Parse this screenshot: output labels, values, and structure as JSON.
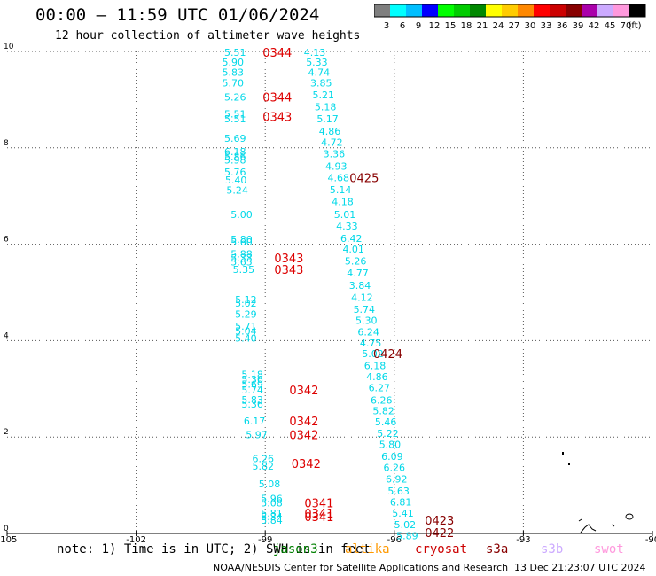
{
  "header": {
    "title": "00:00 – 11:59 UTC 01/06/2024",
    "subtitle": "12 hour collection of altimeter wave heights"
  },
  "colorbar": {
    "ticks": [
      "3",
      "6",
      "9",
      "12",
      "15",
      "18",
      "21",
      "24",
      "27",
      "30",
      "33",
      "36",
      "39",
      "42",
      "45",
      "70",
      "(ft)"
    ],
    "colors": [
      "#7f7f7f",
      "#00ffff",
      "#00bfff",
      "#0000ff",
      "#00ff00",
      "#00cc00",
      "#008800",
      "#ffff00",
      "#ffcc00",
      "#ff8800",
      "#ff0000",
      "#cc0000",
      "#880000",
      "#aa00aa",
      "#ccaaff",
      "#ff99dd",
      "#000000"
    ]
  },
  "footer": {
    "note": "note: 1) Time is in UTC; 2) SWH is in feet",
    "satellites": [
      {
        "name": "jason3",
        "color": "#008000"
      },
      {
        "name": "altika",
        "color": "#ff9900"
      },
      {
        "name": "cryosat",
        "color": "#cc0000"
      },
      {
        "name": "s3a",
        "color": "#880000"
      },
      {
        "name": "s3b",
        "color": "#ccaaff"
      },
      {
        "name": "swot",
        "color": "#ff99dd"
      }
    ],
    "credit": "NOAA/NESDIS Center for Satellite Applications and Research",
    "timestamp": "13 Dec 21:23:07 UTC 2024"
  },
  "chart_data": {
    "type": "scatter",
    "xlim": [
      -105,
      -90
    ],
    "ylim": [
      0,
      10
    ],
    "xticks": [
      "-105",
      "-102",
      "-99",
      "-96",
      "-93",
      "-90"
    ],
    "yticks": [
      "0",
      "2",
      "4",
      "6",
      "8",
      "10"
    ],
    "grid": true,
    "swh_color": "#00d8e8",
    "track1": [
      {
        "lon": -99.7,
        "lat": 9.98,
        "v": "5.51"
      },
      {
        "lon": -99.75,
        "lat": 9.78,
        "v": "5.90"
      },
      {
        "lon": -99.75,
        "lat": 9.57,
        "v": "5.83"
      },
      {
        "lon": -99.75,
        "lat": 9.35,
        "v": "5.70"
      },
      {
        "lon": -99.7,
        "lat": 9.05,
        "v": "5.26"
      },
      {
        "lon": -99.7,
        "lat": 8.7,
        "v": "5.51"
      },
      {
        "lon": -99.7,
        "lat": 8.6,
        "v": "5.51"
      },
      {
        "lon": -99.7,
        "lat": 8.2,
        "v": "5.69"
      },
      {
        "lon": -99.7,
        "lat": 7.92,
        "v": "6.18"
      },
      {
        "lon": -99.7,
        "lat": 7.82,
        "v": "5.86"
      },
      {
        "lon": -99.7,
        "lat": 7.75,
        "v": "5.98"
      },
      {
        "lon": -99.7,
        "lat": 7.5,
        "v": "5.76"
      },
      {
        "lon": -99.68,
        "lat": 7.33,
        "v": "5.40"
      },
      {
        "lon": -99.65,
        "lat": 7.12,
        "v": "5.24"
      },
      {
        "lon": -99.55,
        "lat": 6.62,
        "v": "5.00"
      },
      {
        "lon": -99.55,
        "lat": 6.1,
        "v": "5.80"
      },
      {
        "lon": -99.55,
        "lat": 6.05,
        "v": "5.60"
      },
      {
        "lon": -99.55,
        "lat": 5.8,
        "v": "5.88"
      },
      {
        "lon": -99.55,
        "lat": 5.72,
        "v": "5.33"
      },
      {
        "lon": -99.55,
        "lat": 5.63,
        "v": "5.65"
      },
      {
        "lon": -99.5,
        "lat": 5.48,
        "v": "5.35"
      },
      {
        "lon": -99.45,
        "lat": 4.85,
        "v": "5.12"
      },
      {
        "lon": -99.45,
        "lat": 4.78,
        "v": "5.02"
      },
      {
        "lon": -99.45,
        "lat": 4.55,
        "v": "5.29"
      },
      {
        "lon": -99.45,
        "lat": 4.3,
        "v": "5.71"
      },
      {
        "lon": -99.45,
        "lat": 4.2,
        "v": "5.04"
      },
      {
        "lon": -99.45,
        "lat": 4.05,
        "v": "5.40"
      },
      {
        "lon": -99.3,
        "lat": 3.3,
        "v": "5.18"
      },
      {
        "lon": -99.3,
        "lat": 3.2,
        "v": "5.36"
      },
      {
        "lon": -99.3,
        "lat": 3.1,
        "v": "5.69"
      },
      {
        "lon": -99.3,
        "lat": 2.98,
        "v": "5.74"
      },
      {
        "lon": -99.3,
        "lat": 2.78,
        "v": "5.83"
      },
      {
        "lon": -99.3,
        "lat": 2.68,
        "v": "5.36"
      },
      {
        "lon": -99.25,
        "lat": 2.33,
        "v": "6.17"
      },
      {
        "lon": -99.2,
        "lat": 2.05,
        "v": "5.97"
      },
      {
        "lon": -99.05,
        "lat": 1.55,
        "v": "6.26"
      },
      {
        "lon": -99.05,
        "lat": 1.4,
        "v": "5.82"
      },
      {
        "lon": -98.9,
        "lat": 1.03,
        "v": "5.08"
      },
      {
        "lon": -98.85,
        "lat": 0.73,
        "v": "5.96"
      },
      {
        "lon": -98.85,
        "lat": 0.63,
        "v": "5.08"
      },
      {
        "lon": -98.85,
        "lat": 0.42,
        "v": "5.81"
      },
      {
        "lon": -98.85,
        "lat": 0.35,
        "v": "5.34"
      },
      {
        "lon": -98.85,
        "lat": 0.28,
        "v": "5.84"
      }
    ],
    "track2": [
      {
        "lon": -97.85,
        "lat": 9.98,
        "v": "4.13"
      },
      {
        "lon": -97.8,
        "lat": 9.78,
        "v": "5.33"
      },
      {
        "lon": -97.75,
        "lat": 9.57,
        "v": "4.74"
      },
      {
        "lon": -97.7,
        "lat": 9.35,
        "v": "3.85"
      },
      {
        "lon": -97.65,
        "lat": 9.1,
        "v": "5.21"
      },
      {
        "lon": -97.6,
        "lat": 8.85,
        "v": "5.18"
      },
      {
        "lon": -97.55,
        "lat": 8.6,
        "v": "5.17"
      },
      {
        "lon": -97.5,
        "lat": 8.35,
        "v": "4.86"
      },
      {
        "lon": -97.45,
        "lat": 8.12,
        "v": "4.72"
      },
      {
        "lon": -97.4,
        "lat": 7.88,
        "v": "3.36"
      },
      {
        "lon": -97.35,
        "lat": 7.62,
        "v": "4.93"
      },
      {
        "lon": -97.3,
        "lat": 7.38,
        "v": "4.68"
      },
      {
        "lon": -97.25,
        "lat": 7.13,
        "v": "5.14"
      },
      {
        "lon": -97.2,
        "lat": 6.88,
        "v": "4.18"
      },
      {
        "lon": -97.15,
        "lat": 6.62,
        "v": "5.01"
      },
      {
        "lon": -97.1,
        "lat": 6.38,
        "v": "4.33"
      },
      {
        "lon": -97.0,
        "lat": 6.12,
        "v": "6.42"
      },
      {
        "lon": -96.95,
        "lat": 5.9,
        "v": "4.01"
      },
      {
        "lon": -96.9,
        "lat": 5.65,
        "v": "5.26"
      },
      {
        "lon": -96.85,
        "lat": 5.4,
        "v": "4.77"
      },
      {
        "lon": -96.8,
        "lat": 5.15,
        "v": "3.84"
      },
      {
        "lon": -96.75,
        "lat": 4.9,
        "v": "4.12"
      },
      {
        "lon": -96.7,
        "lat": 4.65,
        "v": "5.74"
      },
      {
        "lon": -96.65,
        "lat": 4.42,
        "v": "5.30"
      },
      {
        "lon": -96.6,
        "lat": 4.18,
        "v": "6.24"
      },
      {
        "lon": -96.55,
        "lat": 3.95,
        "v": "4.75"
      },
      {
        "lon": -96.5,
        "lat": 3.73,
        "v": "5.02"
      },
      {
        "lon": -96.45,
        "lat": 3.48,
        "v": "6.18"
      },
      {
        "lon": -96.4,
        "lat": 3.25,
        "v": "4.86"
      },
      {
        "lon": -96.35,
        "lat": 3.02,
        "v": "6.27"
      },
      {
        "lon": -96.3,
        "lat": 2.77,
        "v": "6.26"
      },
      {
        "lon": -96.25,
        "lat": 2.55,
        "v": "5.82"
      },
      {
        "lon": -96.2,
        "lat": 2.32,
        "v": "5.46"
      },
      {
        "lon": -96.15,
        "lat": 2.08,
        "v": "5.22"
      },
      {
        "lon": -96.1,
        "lat": 1.85,
        "v": "5.80"
      },
      {
        "lon": -96.05,
        "lat": 1.6,
        "v": "6.09"
      },
      {
        "lon": -96.0,
        "lat": 1.37,
        "v": "6.26"
      },
      {
        "lon": -95.95,
        "lat": 1.13,
        "v": "6.92"
      },
      {
        "lon": -95.9,
        "lat": 0.88,
        "v": "5.63"
      },
      {
        "lon": -95.85,
        "lat": 0.65,
        "v": "6.81"
      },
      {
        "lon": -95.8,
        "lat": 0.42,
        "v": "5.41"
      },
      {
        "lon": -95.75,
        "lat": 0.18,
        "v": "5.02"
      },
      {
        "lon": -95.7,
        "lat": -0.05,
        "v": "5.89"
      }
    ],
    "time_labels": [
      {
        "lon": -98.72,
        "lat": 9.98,
        "t": "0344",
        "color": "#dd0000"
      },
      {
        "lon": -98.72,
        "lat": 9.05,
        "t": "0344",
        "color": "#dd0000"
      },
      {
        "lon": -98.72,
        "lat": 8.65,
        "t": "0343",
        "color": "#dd0000"
      },
      {
        "lon": -98.45,
        "lat": 5.72,
        "t": "0343",
        "color": "#dd0000"
      },
      {
        "lon": -98.45,
        "lat": 5.48,
        "t": "0343",
        "color": "#dd0000"
      },
      {
        "lon": -98.1,
        "lat": 2.98,
        "t": "0342",
        "color": "#dd0000"
      },
      {
        "lon": -98.1,
        "lat": 2.33,
        "t": "0342",
        "color": "#dd0000"
      },
      {
        "lon": -98.1,
        "lat": 2.05,
        "t": "0342",
        "color": "#dd0000"
      },
      {
        "lon": -98.05,
        "lat": 1.45,
        "t": "0342",
        "color": "#dd0000"
      },
      {
        "lon": -97.75,
        "lat": 0.63,
        "t": "0341",
        "color": "#dd0000"
      },
      {
        "lon": -97.75,
        "lat": 0.42,
        "t": "0341",
        "color": "#dd0000"
      },
      {
        "lon": -97.75,
        "lat": 0.35,
        "t": "0341",
        "color": "#dd0000"
      },
      {
        "lon": -96.7,
        "lat": 7.38,
        "t": "0425",
        "color": "#880000"
      },
      {
        "lon": -96.15,
        "lat": 3.73,
        "t": "0424",
        "color": "#880000"
      },
      {
        "lon": -94.95,
        "lat": 0.28,
        "t": "0423",
        "color": "#880000"
      },
      {
        "lon": -94.95,
        "lat": 0.02,
        "t": "0422",
        "color": "#880000"
      }
    ]
  }
}
